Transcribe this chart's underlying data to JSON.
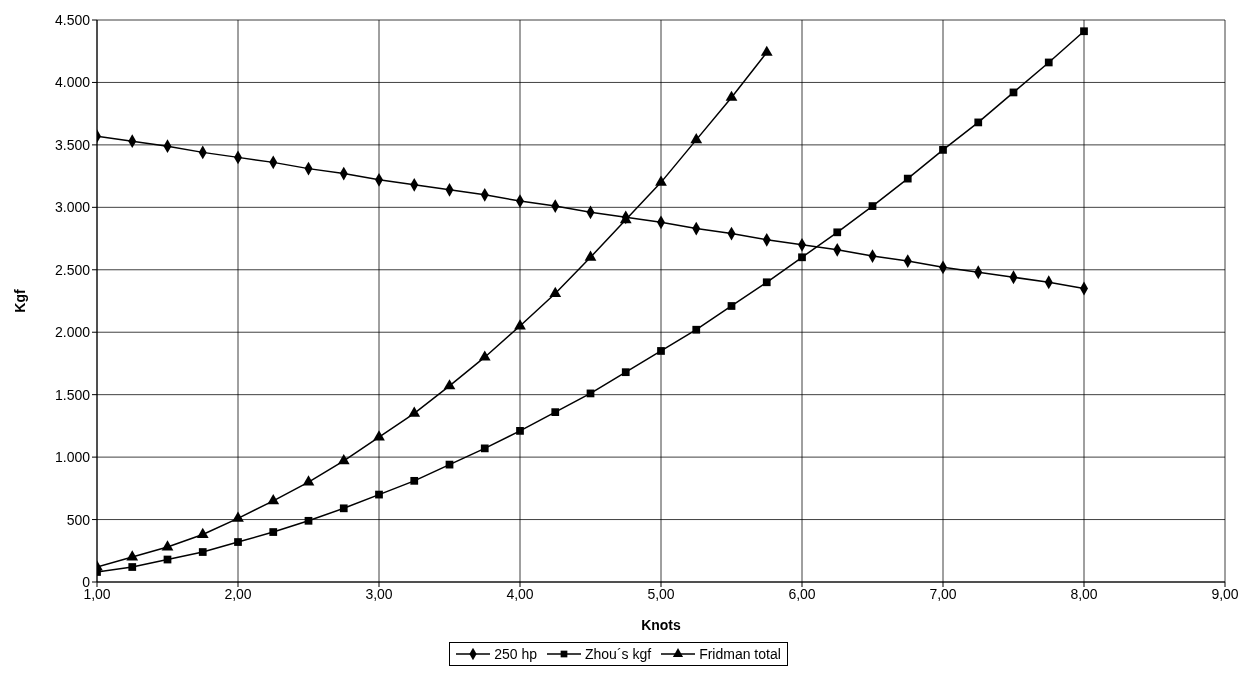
{
  "chart_data": {
    "type": "line",
    "xlabel": "Knots",
    "ylabel": "Kgf",
    "x": [
      1,
      1.25,
      1.5,
      1.75,
      2,
      2.25,
      2.5,
      2.75,
      3,
      3.25,
      3.5,
      3.75,
      4,
      4.25,
      4.5,
      4.75,
      5,
      5.25,
      5.5,
      5.75,
      6,
      6.25,
      6.5,
      6.75,
      7,
      7.25,
      7.5,
      7.75,
      8
    ],
    "series": [
      {
        "name": "250 hp",
        "color": "#000000",
        "marker": "diamond",
        "values": [
          3570,
          3530,
          3490,
          3440,
          3400,
          3360,
          3310,
          3270,
          3220,
          3180,
          3140,
          3100,
          3050,
          3010,
          2960,
          2920,
          2880,
          2830,
          2790,
          2740,
          2700,
          2660,
          2610,
          2570,
          2520,
          2480,
          2440,
          2400,
          2350
        ]
      },
      {
        "name": "Zhou´s  kgf",
        "color": "#000000",
        "marker": "square",
        "values": [
          80,
          120,
          180,
          240,
          320,
          400,
          490,
          590,
          700,
          810,
          940,
          1070,
          1210,
          1360,
          1510,
          1680,
          1850,
          2020,
          2210,
          2400,
          2600,
          2800,
          3010,
          3230,
          3460,
          3680,
          3920,
          4160,
          4410
        ]
      },
      {
        "name": "Fridman total",
        "color": "#000000",
        "marker": "triangle",
        "values": [
          120,
          200,
          280,
          380,
          510,
          650,
          800,
          970,
          1160,
          1350,
          1570,
          1800,
          2050,
          2310,
          2600,
          2900,
          3200,
          3540,
          3880,
          4240,
          null,
          null,
          null,
          null,
          null,
          null,
          null,
          null,
          null
        ]
      }
    ],
    "xlim": [
      1,
      9
    ],
    "xticks": [
      {
        "value": 1,
        "label": "1,00"
      },
      {
        "value": 2,
        "label": "2,00"
      },
      {
        "value": 3,
        "label": "3,00"
      },
      {
        "value": 4,
        "label": "4,00"
      },
      {
        "value": 5,
        "label": "5,00"
      },
      {
        "value": 6,
        "label": "6,00"
      },
      {
        "value": 7,
        "label": "7,00"
      },
      {
        "value": 8,
        "label": "8,00"
      },
      {
        "value": 9,
        "label": "9,00"
      }
    ],
    "ylim": [
      0,
      4500
    ],
    "yticks": [
      0,
      500,
      {
        "value": 1000,
        "label": "1.000"
      },
      {
        "value": 1500,
        "label": "1.500"
      },
      {
        "value": 2000,
        "label": "2.000"
      },
      {
        "value": 2500,
        "label": "2.500"
      },
      {
        "value": 3000,
        "label": "3.000"
      },
      {
        "value": 3500,
        "label": "3.500"
      },
      {
        "value": 4000,
        "label": "4.000"
      },
      {
        "value": 4500,
        "label": "4.500"
      }
    ],
    "grid": true,
    "legend": "bottom",
    "line_style": "solid"
  }
}
